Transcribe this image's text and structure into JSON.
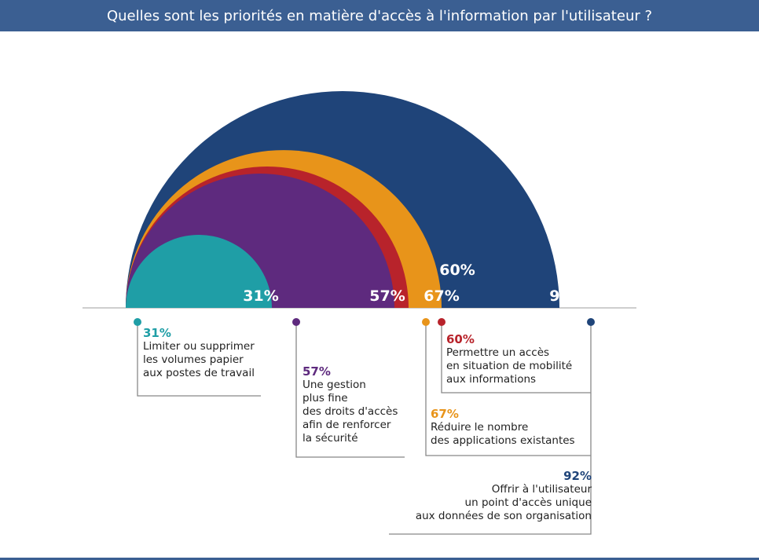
{
  "header": {
    "title": "Quelles sont les priorités en matière d'accès à l'information par l'utilisateur ?"
  },
  "colors": {
    "header_bg": "#3b5f92",
    "navy": "#1f4479",
    "red": "#b8232b",
    "orange": "#e8941a",
    "purple": "#5e2a7e",
    "teal": "#1f9ea6"
  },
  "chart_data": {
    "type": "semi-circle area (nested half-disks)",
    "title": "Quelles sont les priorités en matière d'accès à l'information par l'utilisateur ?",
    "unit": "%",
    "series": [
      {
        "value": 92,
        "label": "92%",
        "color": "#1f4479",
        "lines": [
          "Offrir à l'utilisateur",
          "un point d'accès unique",
          "aux données de son organisation"
        ]
      },
      {
        "value": 67,
        "label": "67%",
        "color": "#e8941a",
        "lines": [
          "Réduire le nombre",
          "des applications existantes"
        ]
      },
      {
        "value": 60,
        "label": "60%",
        "color": "#b8232b",
        "lines": [
          "Permettre un accès",
          "en situation de mobilité",
          "aux informations"
        ]
      },
      {
        "value": 57,
        "label": "57%",
        "color": "#5e2a7e",
        "lines": [
          "Une gestion",
          "plus fine",
          "des droits d'accès",
          "afin de renforcer",
          "la sécurité"
        ]
      },
      {
        "value": 31,
        "label": "31%",
        "color": "#1f9ea6",
        "lines": [
          "Limiter ou supprimer",
          "les volumes papier",
          "aux postes de travail"
        ]
      }
    ]
  }
}
